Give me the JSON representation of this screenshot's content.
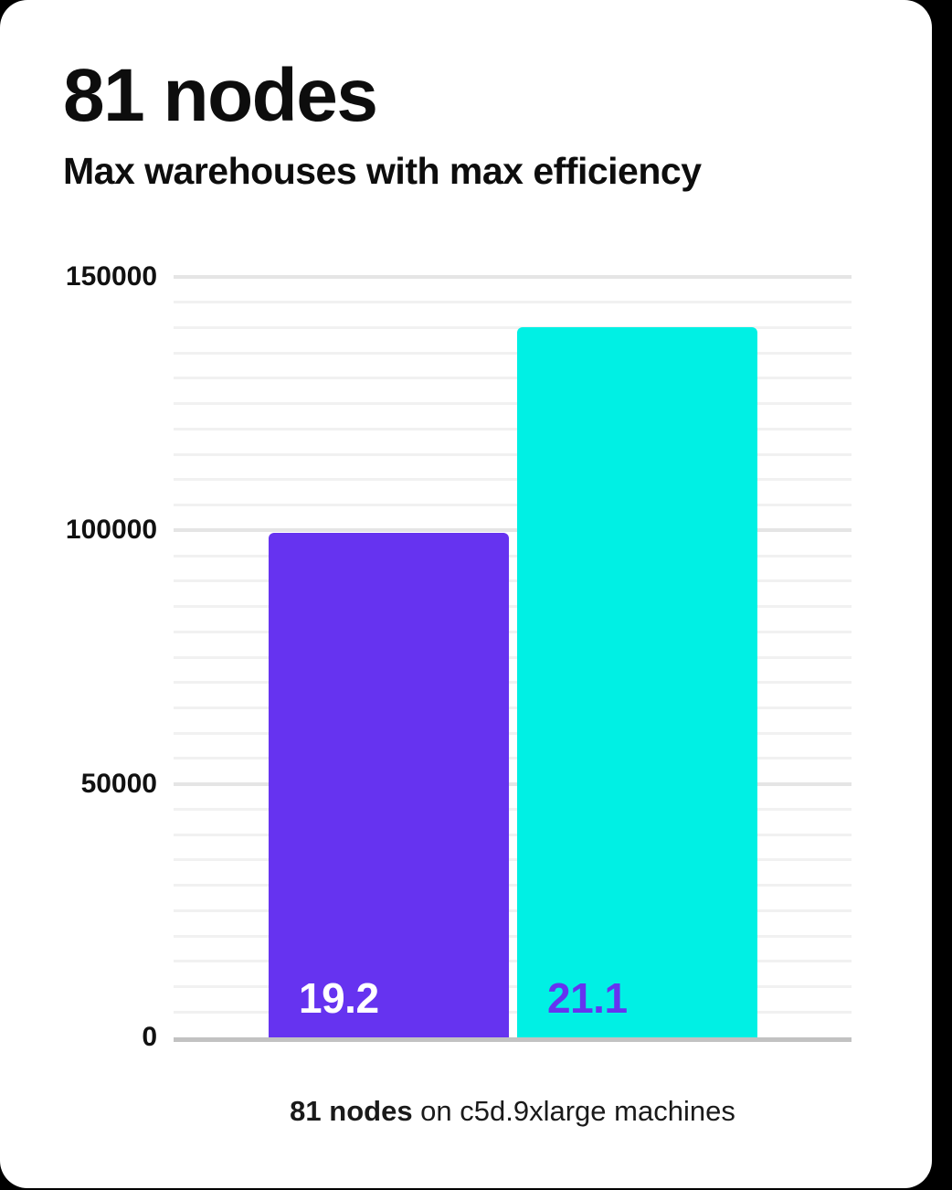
{
  "header": {
    "title": "81 nodes",
    "subtitle": "Max warehouses with max efficiency"
  },
  "caption": {
    "bold": "81 nodes",
    "rest": " on c5d.9xlarge machines"
  },
  "colors": {
    "background": "#000000",
    "card": "#ffffff",
    "purple": "#6633F0",
    "cyan": "#00F0E4",
    "grid_minor": "#f1f1f1",
    "grid_major": "#e5e5e5",
    "axis_line": "#c2c2c2",
    "text": "#0d0d0d"
  },
  "chart_data": {
    "type": "bar",
    "title": "81 nodes",
    "subtitle": "Max warehouses with max efficiency",
    "categories": [
      "19.2",
      "21.1"
    ],
    "values": [
      99500,
      140000
    ],
    "bars": [
      {
        "label": "19.2",
        "value": 99500,
        "color": "#6633F0",
        "label_color": "#ffffff"
      },
      {
        "label": "21.1",
        "value": 140000,
        "color": "#00F0E4",
        "label_color": "#6633F0"
      }
    ],
    "xlabel": "",
    "ylabel": "",
    "ylim": [
      0,
      150000
    ],
    "yticks": [
      150000,
      100000,
      50000,
      0
    ],
    "minor_grid_step": 5000,
    "major_grid_step": 50000,
    "grid": true,
    "legend": false,
    "caption": "81 nodes on c5d.9xlarge machines"
  }
}
